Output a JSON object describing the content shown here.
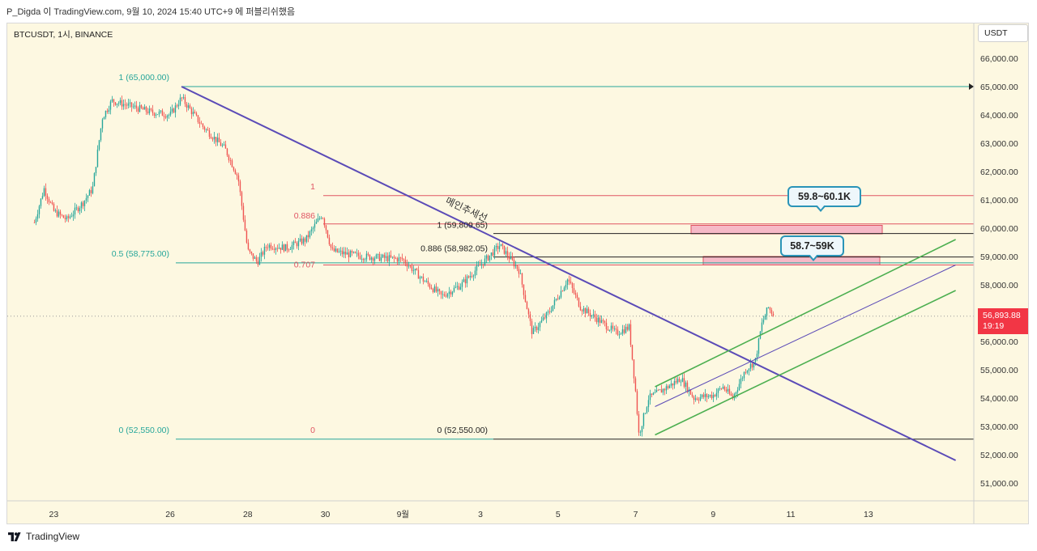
{
  "header": {
    "publish_line": "P_Digda 이 TradingView.com, 9월 10, 2024 15:40 UTC+9 에 퍼블리쉬했음"
  },
  "chart": {
    "symbol_label": "BTCUSDT, 1시, BINANCE",
    "currency": "USDT",
    "last_price": "56,893.88",
    "countdown": "19:19"
  },
  "callouts": {
    "zone_upper": "59.8~60.1K",
    "zone_lower": "58.7~59K"
  },
  "annotations": {
    "main_trendline_label": "메인추세선"
  },
  "fib_labels": {
    "outer_top": "1 (65,000.00)",
    "outer_mid": "0.5 (58,775.00)",
    "outer_bottom": "0 (52,550.00)",
    "red_top": "1",
    "red_0886": "0.886",
    "red_0707": "0.707",
    "red_bottom": "0",
    "black_top": "1 (59,809.65)",
    "black_0886": "0.886 (58,982.05)",
    "black_bottom": "0 (52,550.00)"
  },
  "brand": {
    "name": "TradingView"
  },
  "colors": {
    "background": "#fdf8e1",
    "up_candle": "#26a69a",
    "down_candle": "#ef5350",
    "trendline": "#5b4bb7",
    "channel": "#4caf50",
    "fib_outer": "#26a69a",
    "fib_red": "#e05563",
    "zone_fill": "#f6b9c7",
    "callout_border": "#2a94b8",
    "price_tag": "#f23645"
  },
  "chart_data": {
    "type": "candlestick",
    "title": "BTCUSDT, 1시, BINANCE",
    "interval": "1h",
    "xlabel": "",
    "ylabel": "USDT",
    "ylim": [
      50400,
      66800
    ],
    "y_ticks": [
      "51,000.00",
      "52,000.00",
      "53,000.00",
      "54,000.00",
      "55,000.00",
      "56,000.00",
      "57,000.00",
      "58,000.00",
      "59,000.00",
      "60,000.00",
      "61,000.00",
      "62,000.00",
      "63,000.00",
      "64,000.00",
      "65,000.00",
      "66,000.00"
    ],
    "x_ticks": [
      "23",
      "26",
      "28",
      "30",
      "9월",
      "3",
      "5",
      "7",
      "9",
      "11",
      "13"
    ],
    "grid": false,
    "approx_close_path": [
      {
        "date": "2024-08-22 12:00",
        "close": 60200
      },
      {
        "date": "2024-08-22 18:00",
        "close": 61400
      },
      {
        "date": "2024-08-23 00:00",
        "close": 60600
      },
      {
        "date": "2024-08-23 08:00",
        "close": 60300
      },
      {
        "date": "2024-08-23 18:00",
        "close": 60900
      },
      {
        "date": "2024-08-24 00:00",
        "close": 61400
      },
      {
        "date": "2024-08-24 06:00",
        "close": 63900
      },
      {
        "date": "2024-08-24 12:00",
        "close": 64500
      },
      {
        "date": "2024-08-25 00:00",
        "close": 64300
      },
      {
        "date": "2024-08-25 12:00",
        "close": 64100
      },
      {
        "date": "2024-08-26 00:00",
        "close": 64000
      },
      {
        "date": "2024-08-26 07:00",
        "close": 64600
      },
      {
        "date": "2024-08-26 20:00",
        "close": 63600
      },
      {
        "date": "2024-08-27 10:00",
        "close": 62800
      },
      {
        "date": "2024-08-27 18:00",
        "close": 61800
      },
      {
        "date": "2024-08-28 00:00",
        "close": 59200
      },
      {
        "date": "2024-08-28 06:00",
        "close": 58800
      },
      {
        "date": "2024-08-28 12:00",
        "close": 59400
      },
      {
        "date": "2024-08-29 00:00",
        "close": 59300
      },
      {
        "date": "2024-08-29 12:00",
        "close": 59600
      },
      {
        "date": "2024-08-29 22:00",
        "close": 60500
      },
      {
        "date": "2024-08-30 04:00",
        "close": 59200
      },
      {
        "date": "2024-08-30 12:00",
        "close": 59100
      },
      {
        "date": "2024-08-31 00:00",
        "close": 59000
      },
      {
        "date": "2024-09-01 00:00",
        "close": 58900
      },
      {
        "date": "2024-09-01 12:00",
        "close": 58200
      },
      {
        "date": "2024-09-02 00:00",
        "close": 57600
      },
      {
        "date": "2024-09-02 12:00",
        "close": 58000
      },
      {
        "date": "2024-09-03 00:00",
        "close": 58700
      },
      {
        "date": "2024-09-03 12:00",
        "close": 59400
      },
      {
        "date": "2024-09-04 00:00",
        "close": 58500
      },
      {
        "date": "2024-09-04 08:00",
        "close": 56300
      },
      {
        "date": "2024-09-04 18:00",
        "close": 57000
      },
      {
        "date": "2024-09-05 06:00",
        "close": 58200
      },
      {
        "date": "2024-09-05 14:00",
        "close": 57200
      },
      {
        "date": "2024-09-06 00:00",
        "close": 56800
      },
      {
        "date": "2024-09-06 12:00",
        "close": 56300
      },
      {
        "date": "2024-09-06 20:00",
        "close": 56500
      },
      {
        "date": "2024-09-07 00:00",
        "close": 54200
      },
      {
        "date": "2024-09-07 02:00",
        "close": 52700
      },
      {
        "date": "2024-09-07 08:00",
        "close": 54000
      },
      {
        "date": "2024-09-07 20:00",
        "close": 54400
      },
      {
        "date": "2024-09-08 04:00",
        "close": 54700
      },
      {
        "date": "2024-09-08 12:00",
        "close": 54000
      },
      {
        "date": "2024-09-09 00:00",
        "close": 54100
      },
      {
        "date": "2024-09-09 06:00",
        "close": 54400
      },
      {
        "date": "2024-09-09 12:00",
        "close": 54000
      },
      {
        "date": "2024-09-09 20:00",
        "close": 55000
      },
      {
        "date": "2024-09-10 02:00",
        "close": 55300
      },
      {
        "date": "2024-09-10 06:00",
        "close": 56600
      },
      {
        "date": "2024-09-10 10:00",
        "close": 57200
      },
      {
        "date": "2024-09-10 14:00",
        "close": 56894
      }
    ],
    "levels": [
      {
        "label": "1 (65,000.00)",
        "price": 65000
      },
      {
        "label": "0.5 (58,775.00)",
        "price": 58775
      },
      {
        "label": "0 (52,550.00)",
        "price": 52550
      },
      {
        "label": "1",
        "price": 61150
      },
      {
        "label": "0.886",
        "price": 60150
      },
      {
        "label": "0.707",
        "price": 58700
      },
      {
        "label": "0",
        "price": 52550
      },
      {
        "label": "1 (59,809.65)",
        "price": 59809.65
      },
      {
        "label": "0.886 (58,982.05)",
        "price": 58982.05
      },
      {
        "label": "0 (52,550.00)",
        "price": 52550
      }
    ],
    "zones": [
      {
        "label": "59.8~60.1K",
        "low": 59800,
        "high": 60100
      },
      {
        "label": "58.7~59K",
        "low": 58700,
        "high": 59000
      }
    ],
    "trendlines": [
      {
        "name": "메인추세선",
        "from": {
          "date": "2024-08-26 07:00",
          "price": 65000
        },
        "to": {
          "date": "2024-09-15 06:00",
          "price": 51800
        }
      },
      {
        "from": {
          "date": "2024-09-07 12:00",
          "price": 54400
        },
        "to": {
          "date": "2024-09-15 06:00",
          "price": 59600
        }
      },
      {
        "from": {
          "date": "2024-09-07 12:00",
          "price": 53700
        },
        "to": {
          "date": "2024-09-15 06:00",
          "price": 58700
        }
      },
      {
        "from": {
          "date": "2024-09-07 12:00",
          "price": 52700
        },
        "to": {
          "date": "2024-09-15 06:00",
          "price": 57800
        }
      }
    ]
  }
}
